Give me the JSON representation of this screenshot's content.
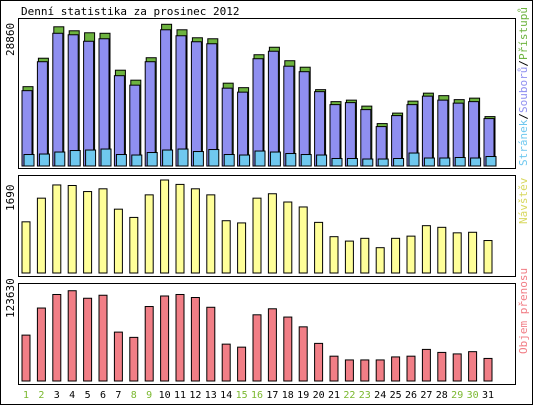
{
  "title": "Denní statistika za prosinec 2012",
  "colors": {
    "background": "#ffffff",
    "border": "#000000",
    "hits": "#6db33f",
    "files": "#8f8ff0",
    "pages": "#6fc8ef",
    "visits": "#ffff99",
    "kbytes": "#f17e86",
    "weekend_label": "#7ab82e",
    "weekday_label": "#000000"
  },
  "legend": {
    "pages": "Stránek",
    "files": "Souborů",
    "hits": "Přístupů",
    "separator": "/",
    "visits": "Návštěv",
    "kbytes": "Objem přenosu"
  },
  "chart_data": [
    {
      "type": "bar",
      "panel": "hits-files-pages",
      "max_label": "28860",
      "ylim": [
        0,
        28860
      ],
      "categories": [
        "1",
        "2",
        "3",
        "4",
        "5",
        "6",
        "7",
        "8",
        "9",
        "10",
        "11",
        "12",
        "13",
        "14",
        "15",
        "16",
        "17",
        "18",
        "19",
        "20",
        "21",
        "22",
        "23",
        "24",
        "25",
        "26",
        "27",
        "28",
        "29",
        "30",
        "31"
      ],
      "weekend_days": [
        "1",
        "2",
        "8",
        "9",
        "15",
        "16",
        "22",
        "23",
        "29",
        "30"
      ],
      "series": [
        {
          "name": "Přístupů",
          "values": [
            15900,
            21600,
            27900,
            27100,
            26700,
            26600,
            19200,
            17200,
            21700,
            28400,
            27300,
            25700,
            25500,
            16600,
            15700,
            22300,
            23800,
            21100,
            19800,
            15300,
            12900,
            13200,
            12000,
            8500,
            10600,
            13000,
            14600,
            14100,
            13300,
            13600,
            9900
          ]
        },
        {
          "name": "Souborů",
          "values": [
            15100,
            20900,
            26600,
            26300,
            25000,
            25500,
            18100,
            16200,
            20900,
            27300,
            26100,
            24900,
            24500,
            15600,
            14800,
            21500,
            23000,
            20000,
            18900,
            14900,
            12300,
            12700,
            11300,
            7900,
            10100,
            12300,
            14000,
            13200,
            12600,
            12900,
            9500
          ]
        },
        {
          "name": "Stránek",
          "values": [
            2300,
            2400,
            2800,
            3100,
            3200,
            3400,
            2300,
            2200,
            2700,
            3200,
            3400,
            2900,
            3300,
            2300,
            2200,
            3000,
            2800,
            2500,
            2300,
            2200,
            1500,
            1500,
            1400,
            1400,
            1500,
            2600,
            1600,
            1600,
            1700,
            1600,
            1900
          ]
        }
      ]
    },
    {
      "type": "bar",
      "panel": "visits",
      "max_label": "1690",
      "ylim": [
        0,
        1690
      ],
      "categories": [
        "1",
        "2",
        "3",
        "4",
        "5",
        "6",
        "7",
        "8",
        "9",
        "10",
        "11",
        "12",
        "13",
        "14",
        "15",
        "16",
        "17",
        "18",
        "19",
        "20",
        "21",
        "22",
        "23",
        "24",
        "25",
        "26",
        "27",
        "28",
        "29",
        "30",
        "31"
      ],
      "series": [
        {
          "name": "Návštěv",
          "values": [
            930,
            1360,
            1600,
            1590,
            1480,
            1530,
            1160,
            1010,
            1420,
            1690,
            1610,
            1530,
            1420,
            950,
            910,
            1360,
            1440,
            1290,
            1200,
            920,
            660,
            580,
            630,
            460,
            630,
            670,
            860,
            830,
            730,
            740,
            590
          ]
        }
      ]
    },
    {
      "type": "bar",
      "panel": "kbytes",
      "max_label": "123630",
      "ylim": [
        0,
        123630
      ],
      "categories": [
        "1",
        "2",
        "3",
        "4",
        "5",
        "6",
        "7",
        "8",
        "9",
        "10",
        "11",
        "12",
        "13",
        "14",
        "15",
        "16",
        "17",
        "18",
        "19",
        "20",
        "21",
        "22",
        "23",
        "24",
        "25",
        "26",
        "27",
        "28",
        "29",
        "30",
        "31"
      ],
      "series": [
        {
          "name": "Objem přenosu",
          "values": [
            61000,
            97000,
            115000,
            120000,
            110000,
            114000,
            65000,
            58000,
            99000,
            113000,
            115000,
            111000,
            98000,
            49000,
            45000,
            88000,
            96000,
            85000,
            72000,
            50000,
            33000,
            28000,
            28000,
            28000,
            32000,
            33000,
            42000,
            38000,
            36000,
            39000,
            30000
          ]
        }
      ]
    }
  ]
}
